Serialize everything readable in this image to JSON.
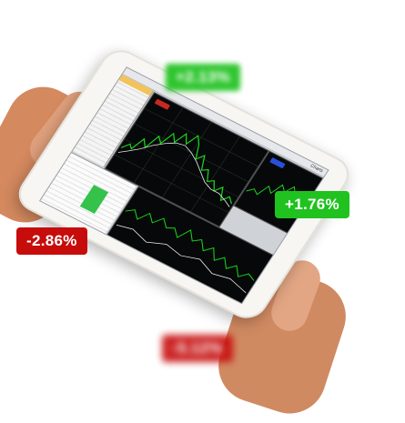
{
  "badges": [
    {
      "id": "top",
      "text": "+2.13%",
      "trend": "up",
      "blurred": true
    },
    {
      "id": "right",
      "text": "+1.76%",
      "trend": "up",
      "blurred": false
    },
    {
      "id": "left",
      "text": "-2.86%",
      "trend": "down",
      "blurred": false
    },
    {
      "id": "bottom",
      "text": "-5.12%",
      "trend": "down",
      "blurred": true
    }
  ],
  "colors": {
    "up": "#1fc21f",
    "down": "#c70c0c",
    "candle_up": "#19d619",
    "candle_down": "#e8e8e8"
  },
  "device": {
    "toolbar_title": "Charts"
  }
}
